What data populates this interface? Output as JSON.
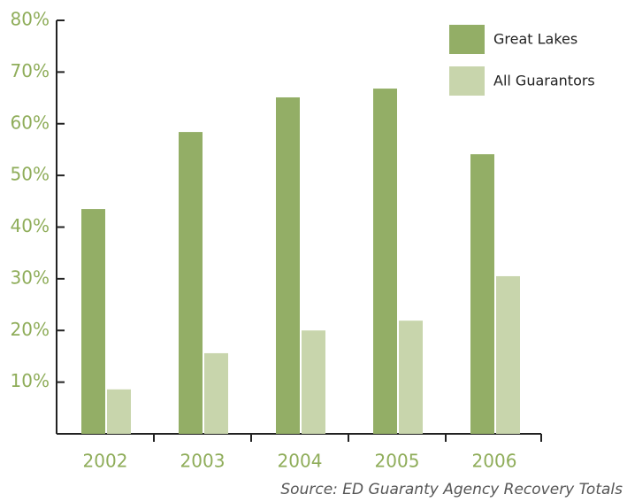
{
  "chart_data": {
    "type": "bar",
    "categories": [
      "2002",
      "2003",
      "2004",
      "2005",
      "2006"
    ],
    "series": [
      {
        "name": "Great Lakes",
        "color": "#93ae66",
        "values": [
          43.5,
          58.4,
          65.1,
          66.8,
          54.1
        ]
      },
      {
        "name": "All Guarantors",
        "color": "#c8d5ac",
        "values": [
          8.6,
          15.6,
          20.0,
          21.9,
          30.5
        ]
      }
    ],
    "ylim": [
      0,
      80
    ],
    "yticks": [
      {
        "value": 10,
        "label": "10%"
      },
      {
        "value": 20,
        "label": "20%"
      },
      {
        "value": 30,
        "label": "30%"
      },
      {
        "value": 40,
        "label": "40%"
      },
      {
        "value": 50,
        "label": "50%"
      },
      {
        "value": 60,
        "label": "60%"
      },
      {
        "value": 70,
        "label": "70%"
      },
      {
        "value": 80,
        "label": "80%"
      }
    ],
    "legend": "top-right",
    "source": "Source:  ED Guaranty Agency Recovery Totals"
  }
}
